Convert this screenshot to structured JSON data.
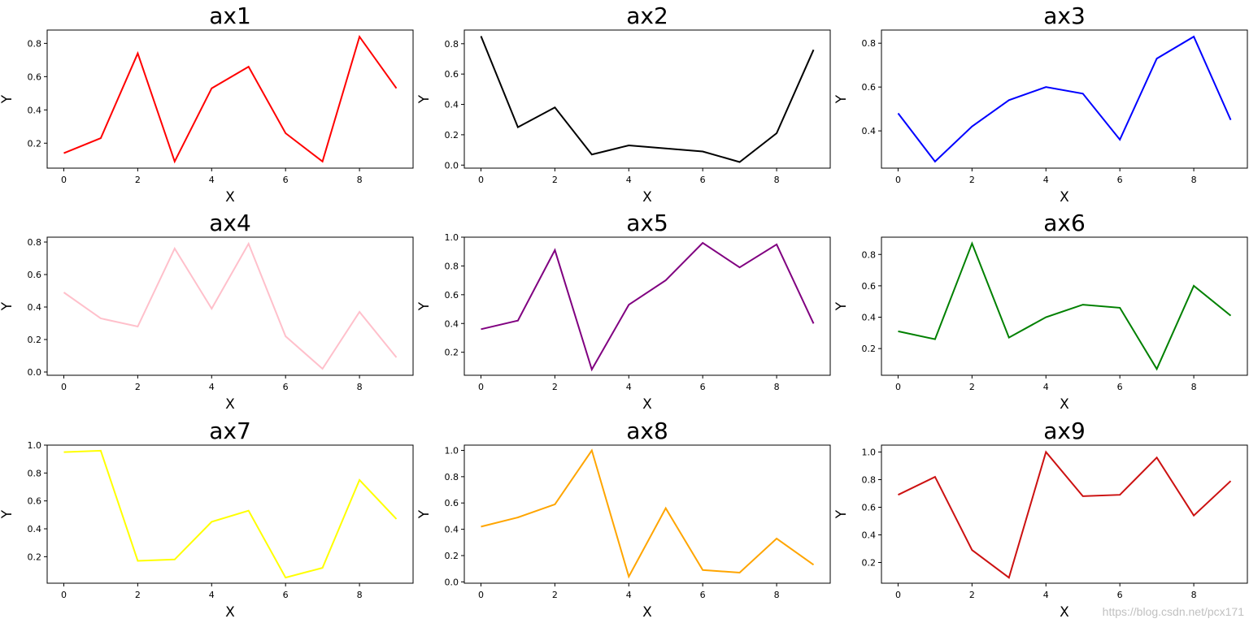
{
  "watermark": "https://blog.csdn.net/pcx171",
  "chart_data": [
    {
      "type": "line",
      "title": "ax1",
      "xlabel": "X",
      "ylabel": "Y",
      "color": "#ff0000",
      "x": [
        0,
        1,
        2,
        3,
        4,
        5,
        6,
        7,
        8,
        9
      ],
      "y": [
        0.14,
        0.23,
        0.74,
        0.09,
        0.53,
        0.66,
        0.26,
        0.09,
        0.84,
        0.53
      ],
      "xticks": [
        0,
        2,
        4,
        6,
        8
      ],
      "yticks": [
        "0.2",
        "0.4",
        "0.6",
        "0.8"
      ],
      "ylim": [
        0.05,
        0.88
      ]
    },
    {
      "type": "line",
      "title": "ax2",
      "xlabel": "X",
      "ylabel": "Y",
      "color": "#000000",
      "x": [
        0,
        1,
        2,
        3,
        4,
        5,
        6,
        7,
        8,
        9
      ],
      "y": [
        0.85,
        0.25,
        0.38,
        0.07,
        0.13,
        0.11,
        0.09,
        0.02,
        0.21,
        0.76
      ],
      "xticks": [
        0,
        2,
        4,
        6,
        8
      ],
      "yticks": [
        "0.0",
        "0.2",
        "0.4",
        "0.6",
        "0.8"
      ],
      "ylim": [
        -0.02,
        0.89
      ]
    },
    {
      "type": "line",
      "title": "ax3",
      "xlabel": "X",
      "ylabel": "Y",
      "color": "#0000ff",
      "x": [
        0,
        1,
        2,
        3,
        4,
        5,
        6,
        7,
        8,
        9
      ],
      "y": [
        0.48,
        0.26,
        0.42,
        0.54,
        0.6,
        0.57,
        0.36,
        0.73,
        0.83,
        0.45
      ],
      "xticks": [
        0,
        2,
        4,
        6,
        8
      ],
      "yticks": [
        "0.4",
        "0.6",
        "0.8"
      ],
      "ylim": [
        0.23,
        0.86
      ]
    },
    {
      "type": "line",
      "title": "ax4",
      "xlabel": "X",
      "ylabel": "Y",
      "color": "#ffc0cb",
      "x": [
        0,
        1,
        2,
        3,
        4,
        5,
        6,
        7,
        8,
        9
      ],
      "y": [
        0.49,
        0.33,
        0.28,
        0.76,
        0.39,
        0.79,
        0.22,
        0.02,
        0.37,
        0.09
      ],
      "xticks": [
        0,
        2,
        4,
        6,
        8
      ],
      "yticks": [
        "0.0",
        "0.2",
        "0.4",
        "0.6",
        "0.8"
      ],
      "ylim": [
        -0.02,
        0.83
      ]
    },
    {
      "type": "line",
      "title": "ax5",
      "xlabel": "X",
      "ylabel": "Y",
      "color": "#800080",
      "x": [
        0,
        1,
        2,
        3,
        4,
        5,
        6,
        7,
        8,
        9
      ],
      "y": [
        0.36,
        0.42,
        0.91,
        0.08,
        0.53,
        0.7,
        0.96,
        0.79,
        0.95,
        0.4
      ],
      "xticks": [
        0,
        2,
        4,
        6,
        8
      ],
      "yticks": [
        "0.2",
        "0.4",
        "0.6",
        "0.8",
        "1.0"
      ],
      "ylim": [
        0.04,
        1.0
      ]
    },
    {
      "type": "line",
      "title": "ax6",
      "xlabel": "X",
      "ylabel": "Y",
      "color": "#008000",
      "x": [
        0,
        1,
        2,
        3,
        4,
        5,
        6,
        7,
        8,
        9
      ],
      "y": [
        0.31,
        0.26,
        0.87,
        0.27,
        0.4,
        0.48,
        0.46,
        0.07,
        0.6,
        0.41
      ],
      "xticks": [
        0,
        2,
        4,
        6,
        8
      ],
      "yticks": [
        "0.2",
        "0.4",
        "0.6",
        "0.8"
      ],
      "ylim": [
        0.03,
        0.91
      ]
    },
    {
      "type": "line",
      "title": "ax7",
      "xlabel": "X",
      "ylabel": "Y",
      "color": "#ffff00",
      "x": [
        0,
        1,
        2,
        3,
        4,
        5,
        6,
        7,
        8,
        9
      ],
      "y": [
        0.95,
        0.96,
        0.17,
        0.18,
        0.45,
        0.53,
        0.05,
        0.12,
        0.75,
        0.47
      ],
      "xticks": [
        0,
        2,
        4,
        6,
        8
      ],
      "yticks": [
        "0.2",
        "0.4",
        "0.6",
        "0.8",
        "1.0"
      ],
      "ylim": [
        0.01,
        1.0
      ]
    },
    {
      "type": "line",
      "title": "ax8",
      "xlabel": "X",
      "ylabel": "Y",
      "color": "#ffa500",
      "x": [
        0,
        1,
        2,
        3,
        4,
        5,
        6,
        7,
        8,
        9
      ],
      "y": [
        0.42,
        0.49,
        0.59,
        1.0,
        0.04,
        0.56,
        0.09,
        0.07,
        0.33,
        0.13
      ],
      "xticks": [
        0,
        2,
        4,
        6,
        8
      ],
      "yticks": [
        "0.0",
        "0.2",
        "0.4",
        "0.6",
        "0.8",
        "1.0"
      ],
      "ylim": [
        -0.01,
        1.04
      ]
    },
    {
      "type": "line",
      "title": "ax9",
      "xlabel": "X",
      "ylabel": "Y",
      "color": "#cc1111",
      "x": [
        0,
        1,
        2,
        3,
        4,
        5,
        6,
        7,
        8,
        9
      ],
      "y": [
        0.69,
        0.82,
        0.29,
        0.09,
        1.0,
        0.68,
        0.69,
        0.96,
        0.54,
        0.79
      ],
      "xticks": [
        0,
        2,
        4,
        6,
        8
      ],
      "yticks": [
        "0.2",
        "0.4",
        "0.6",
        "0.8",
        "1.0"
      ],
      "ylim": [
        0.05,
        1.05
      ]
    }
  ]
}
